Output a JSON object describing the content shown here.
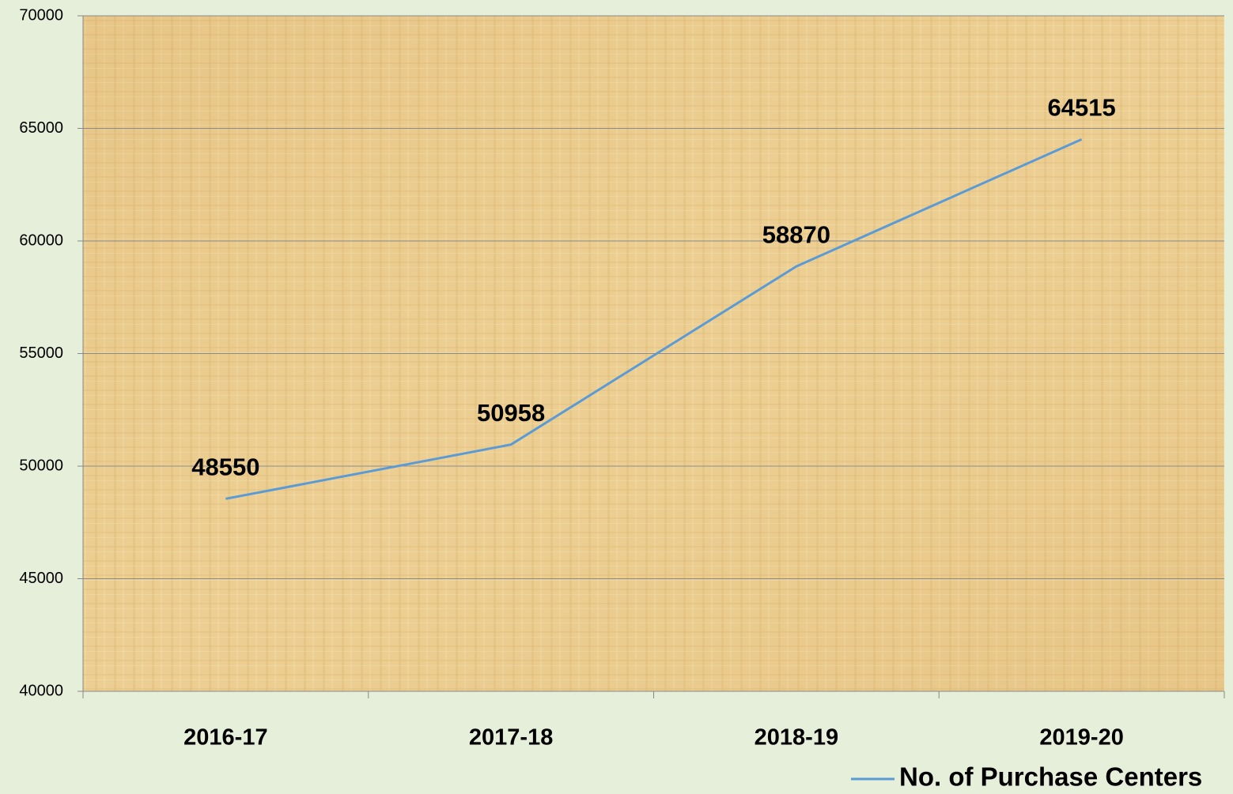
{
  "chart_data": {
    "type": "line",
    "categories": [
      "2016-17",
      "2017-18",
      "2018-19",
      "2019-20"
    ],
    "series": [
      {
        "name": "No. of Purchase Centers",
        "color": "#5b9bd5",
        "values": [
          48550,
          50958,
          58870,
          64515
        ]
      }
    ],
    "ylim": [
      40000,
      70000
    ],
    "yticks": [
      40000,
      45000,
      50000,
      55000,
      60000,
      65000,
      70000
    ],
    "grid": true,
    "legend": "bottom-right",
    "data_labels": true
  }
}
